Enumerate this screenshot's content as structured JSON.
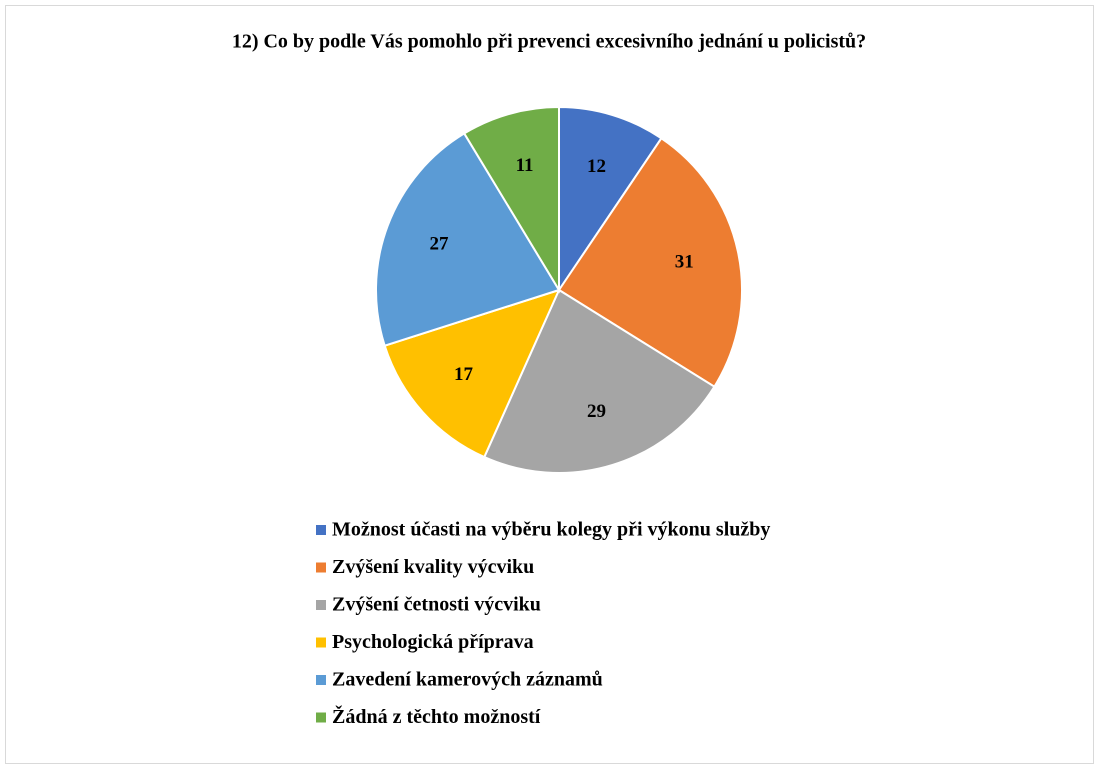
{
  "chart_data": {
    "type": "pie",
    "title": "12) Co by podle Vás pomohlo při prevenci excesivního jednání u policistů?",
    "categories": [
      "Možnost účasti na výběru kolegy při výkonu služby",
      "Zvýšení kvality výcviku",
      "Zvýšení četnosti výcviku",
      "Psychologická příprava",
      "Zavedení kamerových záznamů",
      "Žádná z těchto možností"
    ],
    "values": [
      12,
      31,
      29,
      17,
      27,
      11
    ],
    "colors": [
      "#4472c4",
      "#ed7d31",
      "#a5a5a5",
      "#ffc000",
      "#5b9bd5",
      "#70ad47"
    ],
    "legend": "bottom"
  }
}
